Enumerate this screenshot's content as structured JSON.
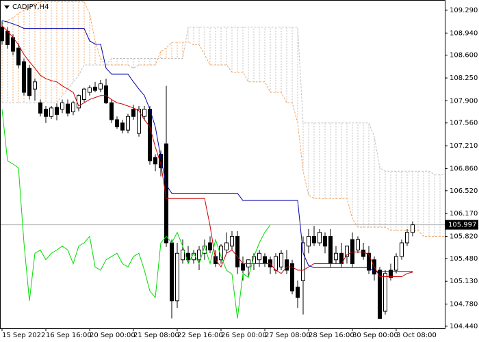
{
  "chart_data": {
    "type": "candlestick",
    "title": "CADJPY,H4",
    "ylim": [
      104.408,
      109.447
    ],
    "xlim": [
      -0.375,
      80.875
    ],
    "yticks": [
      {
        "value": 109.29,
        "label": "109.290"
      },
      {
        "value": 108.94,
        "label": "108.940"
      },
      {
        "value": 108.6,
        "label": "108.600"
      },
      {
        "value": 108.25,
        "label": "108.250"
      },
      {
        "value": 107.9,
        "label": "107.900"
      },
      {
        "value": 107.56,
        "label": "107.560"
      },
      {
        "value": 107.21,
        "label": "107.210"
      },
      {
        "value": 106.86,
        "label": "106.860"
      },
      {
        "value": 106.52,
        "label": "106.520"
      },
      {
        "value": 106.17,
        "label": "106.170"
      },
      {
        "value": 105.82,
        "label": "105.820"
      },
      {
        "value": 105.48,
        "label": "105.480"
      },
      {
        "value": 105.13,
        "label": "105.130"
      },
      {
        "value": 104.78,
        "label": "104.780"
      },
      {
        "value": 104.44,
        "label": "104.440"
      }
    ],
    "xticks": [
      {
        "value": 0,
        "label": "15 Sep 2022"
      },
      {
        "value": 8,
        "label": "16 Sep 16:00"
      },
      {
        "value": 16,
        "label": "20 Sep 00:00"
      },
      {
        "value": 24,
        "label": "21 Sep 08:00"
      },
      {
        "value": 32,
        "label": "22 Sep 16:00"
      },
      {
        "value": 40,
        "label": "26 Sep 00:00"
      },
      {
        "value": 48,
        "label": "27 Sep 08:00"
      },
      {
        "value": 56,
        "label": "28 Sep 16:00"
      },
      {
        "value": 64,
        "label": "30 Sep 00:00"
      },
      {
        "value": 72,
        "label": "3 Oct 08:00"
      }
    ],
    "current_price": 105.997,
    "up_color": "#ffffff",
    "down_color": "#000000",
    "open": [
      109.03,
      108.97,
      108.87,
      108.71,
      108.5,
      108.4,
      108.08,
      107.87,
      107.77,
      107.66,
      107.8,
      107.77,
      107.85,
      107.73,
      107.79,
      107.92,
      108.03,
      108.11,
      108.08,
      108.13,
      107.87,
      107.61,
      107.56,
      107.45,
      107.77,
      107.4,
      107.66,
      107.77,
      107.03,
      107.08,
      107.24,
      105.72,
      104.83,
      105.46,
      105.56,
      105.46,
      105.46,
      105.56,
      105.72,
      105.51,
      105.46,
      105.61,
      105.67,
      105.82,
      105.4,
      105.35,
      105.4,
      105.46,
      105.51,
      105.46,
      105.3,
      105.35,
      105.46,
      105.4,
      105.04,
      105.14,
      105.67,
      105.82,
      105.72,
      105.82,
      105.82,
      105.46,
      105.56,
      105.51,
      105.77,
      105.61,
      105.61,
      105.56,
      105.46,
      105.3,
      104.67,
      105.3,
      105.3,
      105.51,
      105.72,
      105.88
    ],
    "high": [
      109.13,
      109.03,
      108.92,
      108.78,
      108.55,
      108.45,
      108.24,
      107.92,
      107.82,
      107.82,
      107.86,
      107.92,
      107.92,
      107.9,
      108.0,
      108.1,
      108.14,
      108.19,
      108.22,
      108.24,
      107.92,
      107.66,
      107.61,
      107.7,
      107.84,
      107.82,
      107.82,
      107.82,
      107.08,
      107.14,
      108.13,
      105.77,
      105.72,
      105.77,
      105.67,
      105.61,
      105.67,
      105.77,
      105.82,
      105.61,
      105.7,
      105.88,
      105.9,
      105.9,
      105.51,
      105.46,
      105.56,
      105.61,
      105.56,
      105.51,
      105.56,
      105.61,
      105.61,
      105.46,
      105.14,
      105.82,
      105.93,
      105.98,
      105.93,
      105.88,
      105.93,
      105.67,
      105.72,
      105.67,
      105.88,
      105.82,
      105.72,
      105.67,
      105.51,
      105.35,
      105.3,
      105.4,
      105.56,
      105.77,
      105.93,
      106.05
    ],
    "low": [
      108.76,
      108.7,
      108.6,
      108.4,
      107.98,
      107.92,
      107.9,
      107.66,
      107.56,
      107.62,
      107.6,
      107.71,
      107.66,
      107.68,
      107.74,
      107.88,
      107.98,
      108.03,
      108.03,
      107.85,
      107.56,
      107.47,
      107.4,
      107.4,
      107.61,
      107.35,
      107.6,
      106.92,
      106.82,
      106.74,
      105.66,
      104.56,
      104.72,
      105.4,
      105.4,
      105.4,
      105.3,
      105.46,
      105.56,
      105.35,
      105.4,
      105.56,
      105.61,
      105.24,
      105.14,
      105.19,
      105.3,
      105.35,
      105.35,
      105.24,
      105.24,
      105.3,
      105.24,
      104.93,
      104.72,
      104.62,
      105.56,
      105.67,
      105.67,
      105.56,
      105.35,
      105.4,
      105.35,
      105.4,
      105.35,
      105.56,
      105.46,
      105.24,
      105.14,
      104.56,
      104.62,
      105.14,
      105.25,
      105.46,
      105.67,
      105.82
    ],
    "close": [
      108.82,
      108.76,
      108.66,
      108.45,
      108.03,
      107.98,
      108.19,
      107.71,
      107.66,
      107.79,
      107.69,
      107.87,
      107.71,
      107.87,
      107.98,
      108.08,
      108.1,
      108.06,
      108.16,
      107.87,
      107.61,
      107.5,
      107.45,
      107.66,
      107.66,
      107.77,
      107.77,
      106.98,
      106.93,
      106.87,
      105.72,
      104.83,
      105.56,
      105.61,
      105.46,
      105.56,
      105.61,
      105.67,
      105.61,
      105.4,
      105.67,
      105.72,
      105.82,
      105.35,
      105.3,
      105.46,
      105.51,
      105.56,
      105.4,
      105.35,
      105.51,
      105.56,
      105.3,
      104.98,
      104.88,
      105.72,
      105.82,
      105.72,
      105.88,
      105.67,
      105.4,
      105.56,
      105.4,
      105.67,
      105.4,
      105.77,
      105.51,
      105.3,
      105.24,
      104.56,
      105.25,
      105.19,
      105.51,
      105.72,
      105.88,
      105.997
    ],
    "indicators": {
      "tenkan": {
        "color": "#cc0000",
        "values": [
          109.05,
          108.97,
          108.87,
          108.76,
          108.61,
          108.5,
          108.4,
          108.29,
          108.24,
          108.21,
          108.19,
          108.13,
          108.08,
          108.03,
          107.82,
          107.87,
          107.92,
          107.95,
          107.98,
          107.98,
          107.92,
          107.87,
          107.85,
          107.82,
          107.79,
          107.75,
          107.61,
          107.5,
          107.19,
          106.93,
          106.4,
          106.4,
          106.4,
          106.4,
          106.4,
          106.4,
          106.4,
          106.4,
          105.98,
          105.46,
          105.35,
          105.56,
          105.61,
          105.51,
          105.4,
          105.4,
          105.4,
          105.4,
          105.4,
          105.4,
          105.3,
          105.25,
          105.35,
          105.35,
          105.3,
          105.3,
          105.35,
          105.4,
          105.4,
          105.4,
          105.4,
          105.4,
          105.4,
          105.54,
          105.58,
          105.58,
          105.58,
          105.54,
          105.35,
          105.2,
          105.2,
          105.2,
          105.2,
          105.2,
          105.25,
          105.27,
          null,
          null,
          null,
          null,
          null,
          null
        ]
      },
      "kijun": {
        "color": "#0000aa",
        "values": [
          109.13,
          109.11,
          109.08,
          109.05,
          109.01,
          109.01,
          109.01,
          109.01,
          109.01,
          109.01,
          109.01,
          109.01,
          109.01,
          109.01,
          109.01,
          109.01,
          108.82,
          108.77,
          108.77,
          108.4,
          108.31,
          108.31,
          108.31,
          108.31,
          108.19,
          108.08,
          107.98,
          107.77,
          107.5,
          107.03,
          106.61,
          106.48,
          106.48,
          106.48,
          106.48,
          106.48,
          106.48,
          106.48,
          106.48,
          106.48,
          106.48,
          106.48,
          106.48,
          106.48,
          106.37,
          106.37,
          106.37,
          106.37,
          106.37,
          106.37,
          106.37,
          106.37,
          106.37,
          106.37,
          106.37,
          105.56,
          105.37,
          105.34,
          105.34,
          105.34,
          105.34,
          105.34,
          105.34,
          105.34,
          105.34,
          105.34,
          105.34,
          105.34,
          105.28,
          105.28,
          105.28,
          105.28,
          105.28,
          105.28,
          105.28,
          105.28,
          null,
          null,
          null,
          null,
          null,
          null
        ]
      },
      "chikou": {
        "color": "#00dd00",
        "values": [
          107.77,
          106.98,
          106.93,
          106.87,
          105.72,
          104.83,
          105.56,
          105.61,
          105.46,
          105.56,
          105.61,
          105.67,
          105.61,
          105.4,
          105.67,
          105.72,
          105.82,
          105.35,
          105.3,
          105.46,
          105.51,
          105.56,
          105.4,
          105.35,
          105.51,
          105.56,
          105.3,
          104.98,
          104.88,
          105.72,
          105.82,
          105.72,
          105.88,
          105.67,
          105.4,
          105.56,
          105.4,
          105.67,
          105.4,
          105.77,
          105.51,
          105.3,
          105.24,
          104.56,
          105.25,
          105.19,
          105.51,
          105.72,
          105.88,
          105.997,
          null,
          null,
          null,
          null,
          null,
          null,
          null,
          null,
          null,
          null,
          null,
          null,
          null,
          null,
          null,
          null,
          null,
          null,
          null,
          null,
          null,
          null,
          null,
          null,
          null,
          null,
          null,
          null,
          null,
          null,
          null,
          null
        ]
      },
      "senkou_a": {
        "color": "#f4a460",
        "values": [
          109.08,
          109.13,
          109.18,
          109.24,
          109.29,
          109.34,
          109.39,
          109.42,
          109.42,
          109.42,
          109.42,
          109.42,
          109.42,
          109.42,
          109.42,
          109.42,
          109.24,
          108.82,
          108.55,
          108.45,
          108.45,
          108.45,
          108.45,
          108.45,
          108.4,
          108.45,
          108.45,
          108.45,
          108.45,
          108.66,
          108.71,
          108.8,
          108.8,
          108.8,
          108.8,
          108.76,
          108.76,
          108.61,
          108.45,
          108.45,
          108.45,
          108.45,
          108.34,
          108.34,
          108.34,
          108.19,
          108.19,
          108.19,
          108.19,
          108.03,
          108.03,
          108.03,
          107.87,
          107.87,
          107.56,
          106.82,
          106.45,
          106.4,
          106.4,
          106.4,
          106.4,
          106.4,
          106.4,
          106.4,
          106.09,
          105.96,
          105.96,
          105.96,
          105.96,
          105.96,
          105.96,
          105.91,
          105.91,
          105.91,
          105.91,
          105.91,
          105.91,
          105.82,
          105.82,
          105.82,
          105.82,
          105.82
        ]
      },
      "senkou_b": {
        "color": "#c0c0c0",
        "values": [
          107.87,
          107.87,
          107.87,
          107.87,
          107.87,
          107.87,
          107.87,
          107.87,
          107.87,
          107.87,
          107.87,
          107.98,
          108.08,
          108.19,
          108.29,
          108.45,
          108.45,
          108.45,
          108.45,
          108.45,
          108.55,
          108.55,
          108.55,
          108.55,
          108.55,
          108.55,
          108.55,
          108.55,
          108.55,
          108.55,
          108.55,
          108.55,
          108.55,
          108.55,
          109.03,
          109.03,
          109.03,
          109.03,
          109.03,
          109.03,
          109.03,
          109.03,
          109.03,
          109.03,
          109.03,
          109.03,
          109.03,
          109.03,
          109.03,
          109.03,
          109.03,
          109.03,
          109.03,
          109.03,
          109.03,
          107.56,
          107.56,
          107.56,
          107.56,
          107.56,
          107.56,
          107.56,
          107.56,
          107.56,
          107.56,
          107.56,
          107.56,
          107.56,
          107.35,
          106.87,
          106.82,
          106.82,
          106.82,
          106.82,
          106.82,
          106.82,
          106.82,
          106.82,
          106.82,
          106.77,
          106.77,
          106.77
        ]
      }
    }
  }
}
